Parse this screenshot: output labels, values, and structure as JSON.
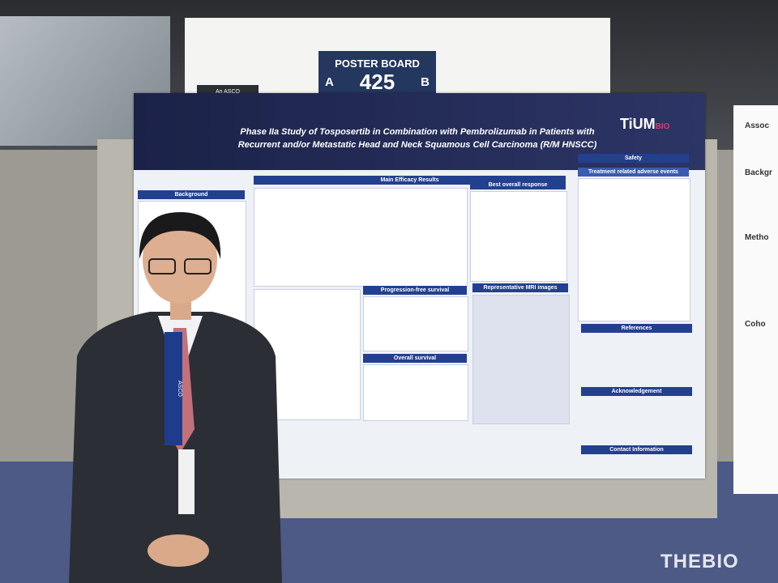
{
  "sign": {
    "heading": "POSTER BOARD",
    "side_a": "A",
    "number": "425",
    "side_b": "B"
  },
  "photographer_note": "An ASCO photographer will take photos for the Digital Program.",
  "poster": {
    "logo_main": "TiUM",
    "logo_sub": "BIO",
    "title_line1": "Phase IIa Study of Tosposertib in Combination with Pembrolizumab in Patients with",
    "title_line2": "Recurrent and/or Metastatic Head and Neck Squamous Cell Carcinoma (R/M HNSCC)",
    "sections": {
      "background": "Background",
      "main_efficacy": "Main Efficacy Results",
      "safety": "Safety",
      "traes": "Treatment related adverse events (TRAEs)",
      "best_response": "Best overall response",
      "mri": "Representative MRI images",
      "pfs": "Progression-free survival",
      "os": "Overall survival",
      "references": "References",
      "acknowledgement": "Acknowledgement",
      "contact": "Contact Information"
    }
  },
  "side_poster": {
    "line1": "Assoc",
    "line2": "Backgr",
    "line3": "Metho",
    "line4": "Coho"
  },
  "lanyard": "ASCO",
  "watermark": "THEBIO"
}
